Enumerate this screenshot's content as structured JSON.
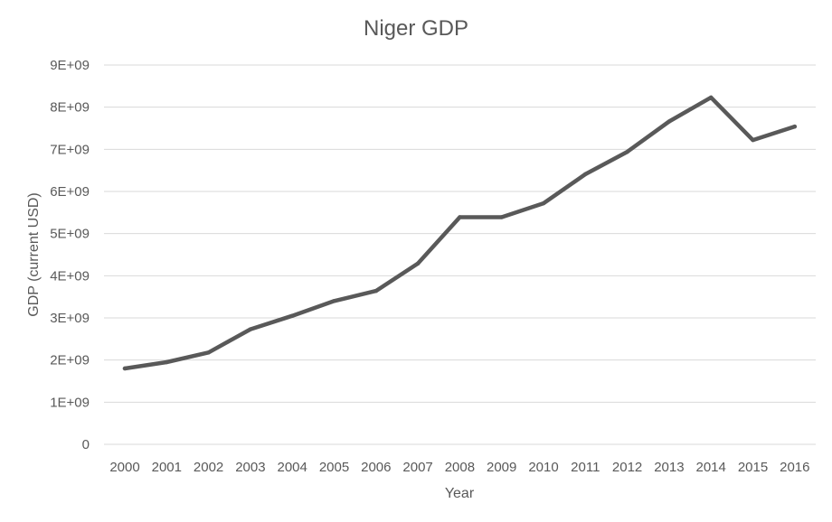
{
  "chart_data": {
    "type": "line",
    "title": "Niger GDP",
    "xlabel": "Year",
    "ylabel": "GDP (current USD)",
    "x": [
      "2000",
      "2001",
      "2002",
      "2003",
      "2004",
      "2005",
      "2006",
      "2007",
      "2008",
      "2009",
      "2010",
      "2011",
      "2012",
      "2013",
      "2014",
      "2015",
      "2016"
    ],
    "series": [
      {
        "values": [
          1800000000.0,
          1950000000.0,
          2180000000.0,
          2730000000.0,
          3050000000.0,
          3400000000.0,
          3640000000.0,
          4290000000.0,
          5390000000.0,
          5390000000.0,
          5720000000.0,
          6410000000.0,
          6940000000.0,
          7660000000.0,
          8230000000.0,
          7220000000.0,
          7540000000.0
        ],
        "color": "#595959"
      }
    ],
    "ylim": [
      0,
      9000000000
    ],
    "y_ticks": [
      0,
      1000000000,
      2000000000,
      3000000000,
      4000000000,
      5000000000,
      6000000000,
      7000000000,
      8000000000,
      9000000000
    ],
    "y_tick_labels": [
      "0",
      "1E+09",
      "2E+09",
      "3E+09",
      "4E+09",
      "5E+09",
      "6E+09",
      "7E+09",
      "8E+09",
      "9E+09"
    ],
    "grid": "horizontal",
    "legend": "none"
  }
}
